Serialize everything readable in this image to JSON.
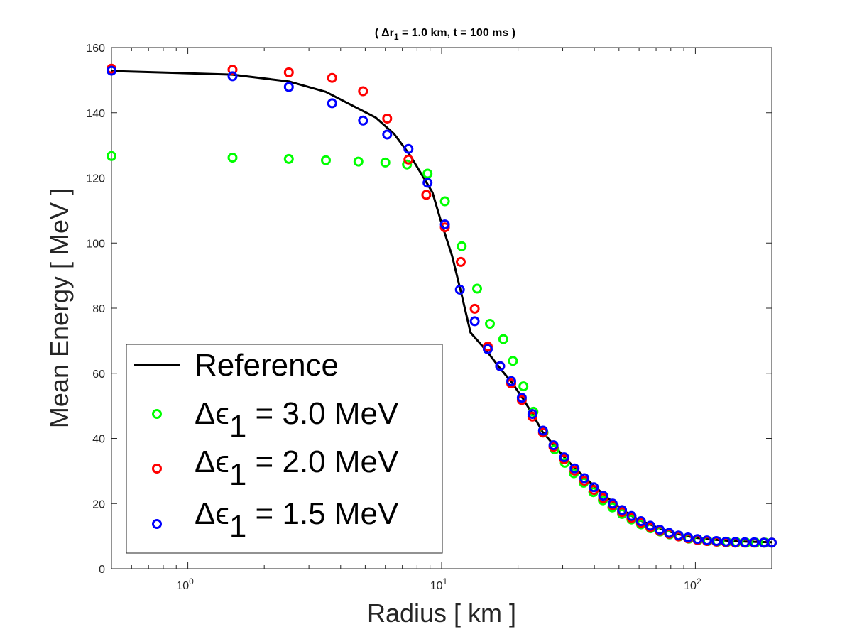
{
  "chart_data": {
    "type": "scatter",
    "title_parts": [
      "( ",
      "Δr",
      "1",
      " = 1.0 km, t = 100 ms )"
    ],
    "xlabel": "Radius [ km ]",
    "ylabel": "Mean Energy [ MeV ]",
    "xscale": "log",
    "xlim": [
      0.5,
      200
    ],
    "ylim": [
      0,
      160
    ],
    "x_ticks": [
      {
        "value": 1,
        "base": "10",
        "exp": "0"
      },
      {
        "value": 10,
        "base": "10",
        "exp": "1"
      },
      {
        "value": 100,
        "base": "10",
        "exp": "2"
      }
    ],
    "y_ticks": [
      0,
      20,
      40,
      60,
      80,
      100,
      120,
      140,
      160
    ],
    "legend": {
      "location": "bottom-left",
      "entries": [
        {
          "label": "Reference",
          "marker": "line",
          "color": "#000000"
        },
        {
          "prefix": "Δϵ",
          "sub": "1",
          "suffix": " = 3.0 MeV",
          "marker": "circle",
          "color": "#00ff00"
        },
        {
          "prefix": "Δϵ",
          "sub": "1",
          "suffix": " = 2.0 MeV",
          "marker": "circle",
          "color": "#ff0000"
        },
        {
          "prefix": "Δϵ",
          "sub": "1",
          "suffix": " = 1.5 MeV",
          "marker": "circle",
          "color": "#0000ff"
        }
      ]
    },
    "reference_line": {
      "name": "Reference",
      "color": "#000000",
      "points": [
        [
          0.5,
          152.8
        ],
        [
          1.5,
          151.7
        ],
        [
          2.5,
          149.6
        ],
        [
          3.5,
          146.4
        ],
        [
          4.5,
          142.0
        ],
        [
          5.5,
          138.5
        ],
        [
          6.5,
          133.5
        ],
        [
          7.5,
          127.0
        ],
        [
          8.5,
          120.0
        ],
        [
          9.2,
          115.5
        ],
        [
          10,
          106
        ],
        [
          11,
          96
        ],
        [
          12,
          84
        ],
        [
          13,
          72.5
        ],
        [
          15,
          67
        ],
        [
          17,
          61.5
        ],
        [
          19,
          57
        ],
        [
          21,
          52
        ],
        [
          23,
          47
        ],
        [
          25,
          42
        ],
        [
          28,
          37.5
        ],
        [
          31,
          33.5
        ],
        [
          35,
          29.5
        ],
        [
          40,
          25.3
        ],
        [
          45,
          21.8
        ],
        [
          50,
          19.0
        ],
        [
          55,
          16.6
        ],
        [
          60,
          15.0
        ],
        [
          70,
          12.8
        ],
        [
          80,
          11.3
        ],
        [
          90,
          10.2
        ],
        [
          100,
          9.5
        ],
        [
          120,
          8.9
        ],
        [
          140,
          8.5
        ],
        [
          160,
          8.3
        ],
        [
          180,
          8.2
        ],
        [
          200,
          8.1
        ]
      ]
    },
    "series": [
      {
        "name": "Δϵ1 = 3.0 MeV",
        "color": "#00ff00",
        "points": [
          [
            0.5,
            126.7
          ],
          [
            1.5,
            126.2
          ],
          [
            2.5,
            125.8
          ],
          [
            3.5,
            125.4
          ],
          [
            4.7,
            125.0
          ],
          [
            6.0,
            124.7
          ],
          [
            7.3,
            124.1
          ],
          [
            8.8,
            121.3
          ],
          [
            10.3,
            112.8
          ],
          [
            12.0,
            99.0
          ],
          [
            13.8,
            86.0
          ],
          [
            15.5,
            75.2
          ],
          [
            17.5,
            70.5
          ],
          [
            19.1,
            63.8
          ],
          [
            21.0,
            56.0
          ],
          [
            23.0,
            48.2
          ],
          [
            25.2,
            41.8
          ],
          [
            27.9,
            36.6
          ],
          [
            30.6,
            32.5
          ],
          [
            33.2,
            29.3
          ],
          [
            36.3,
            26.4
          ],
          [
            39.6,
            23.5
          ],
          [
            43.2,
            21.0
          ],
          [
            47.1,
            18.8
          ],
          [
            51.4,
            16.8
          ],
          [
            56.0,
            15.1
          ],
          [
            61.1,
            13.6
          ],
          [
            66.6,
            12.4
          ],
          [
            72.6,
            11.4
          ],
          [
            79.2,
            10.5
          ],
          [
            86.4,
            9.9
          ],
          [
            94.2,
            9.2
          ],
          [
            102.7,
            8.8
          ],
          [
            112.0,
            8.5
          ],
          [
            122.1,
            8.3
          ],
          [
            133.2,
            8.2
          ],
          [
            145.2,
            8.1
          ],
          [
            158.4,
            8.0
          ],
          [
            172.7,
            8.0
          ],
          [
            188.3,
            8.0
          ],
          [
            200.0,
            8.0
          ]
        ]
      },
      {
        "name": "Δϵ1 = 2.0 MeV",
        "color": "#ff0000",
        "points": [
          [
            0.5,
            153.5
          ],
          [
            1.5,
            153.2
          ],
          [
            2.5,
            152.4
          ],
          [
            3.7,
            150.7
          ],
          [
            4.9,
            146.6
          ],
          [
            6.1,
            138.2
          ],
          [
            7.4,
            125.6
          ],
          [
            8.7,
            114.8
          ],
          [
            10.3,
            104.8
          ],
          [
            11.9,
            94.2
          ],
          [
            13.5,
            79.8
          ],
          [
            15.2,
            68.2
          ],
          [
            17.0,
            62.2
          ],
          [
            18.8,
            56.9
          ],
          [
            20.7,
            51.8
          ],
          [
            22.8,
            46.7
          ],
          [
            25.1,
            41.8
          ],
          [
            27.6,
            37.4
          ],
          [
            30.4,
            33.6
          ],
          [
            33.4,
            30.1
          ],
          [
            36.5,
            27.0
          ],
          [
            39.8,
            24.2
          ],
          [
            43.3,
            21.7
          ],
          [
            47.2,
            19.5
          ],
          [
            51.4,
            17.4
          ],
          [
            56.0,
            15.6
          ],
          [
            61.0,
            14.1
          ],
          [
            66.4,
            12.7
          ],
          [
            72.3,
            11.6
          ],
          [
            78.8,
            10.7
          ],
          [
            85.8,
            9.9
          ],
          [
            93.5,
            9.3
          ],
          [
            101.9,
            8.8
          ],
          [
            111.0,
            8.5
          ],
          [
            121.0,
            8.3
          ],
          [
            131.8,
            8.1
          ],
          [
            143.6,
            8.0
          ],
          [
            156.5,
            8.0
          ],
          [
            170.6,
            8.0
          ],
          [
            185.9,
            8.0
          ],
          [
            200.0,
            8.0
          ]
        ]
      },
      {
        "name": "Δϵ1 = 1.5 MeV",
        "color": "#0000ff",
        "points": [
          [
            0.5,
            152.9
          ],
          [
            1.5,
            151.2
          ],
          [
            2.5,
            147.9
          ],
          [
            3.7,
            142.9
          ],
          [
            4.9,
            137.6
          ],
          [
            6.1,
            133.3
          ],
          [
            7.4,
            128.9
          ],
          [
            8.8,
            118.5
          ],
          [
            10.3,
            105.7
          ],
          [
            11.8,
            85.7
          ],
          [
            13.5,
            76.0
          ],
          [
            15.2,
            67.4
          ],
          [
            17.0,
            62.2
          ],
          [
            18.8,
            57.6
          ],
          [
            20.7,
            52.5
          ],
          [
            22.8,
            47.5
          ],
          [
            25.1,
            42.4
          ],
          [
            27.6,
            37.9
          ],
          [
            30.4,
            34.2
          ],
          [
            33.4,
            30.8
          ],
          [
            36.5,
            27.8
          ],
          [
            39.8,
            25.0
          ],
          [
            43.3,
            22.4
          ],
          [
            47.2,
            20.0
          ],
          [
            51.4,
            18.0
          ],
          [
            56.0,
            16.2
          ],
          [
            61.0,
            14.6
          ],
          [
            66.4,
            13.2
          ],
          [
            72.3,
            12.0
          ],
          [
            78.8,
            11.0
          ],
          [
            85.8,
            10.2
          ],
          [
            93.5,
            9.6
          ],
          [
            101.9,
            9.1
          ],
          [
            111.0,
            8.7
          ],
          [
            121.0,
            8.5
          ],
          [
            131.8,
            8.3
          ],
          [
            143.6,
            8.2
          ],
          [
            156.5,
            8.1
          ],
          [
            170.6,
            8.1
          ],
          [
            185.9,
            8.0
          ],
          [
            200.0,
            8.0
          ]
        ]
      }
    ]
  }
}
